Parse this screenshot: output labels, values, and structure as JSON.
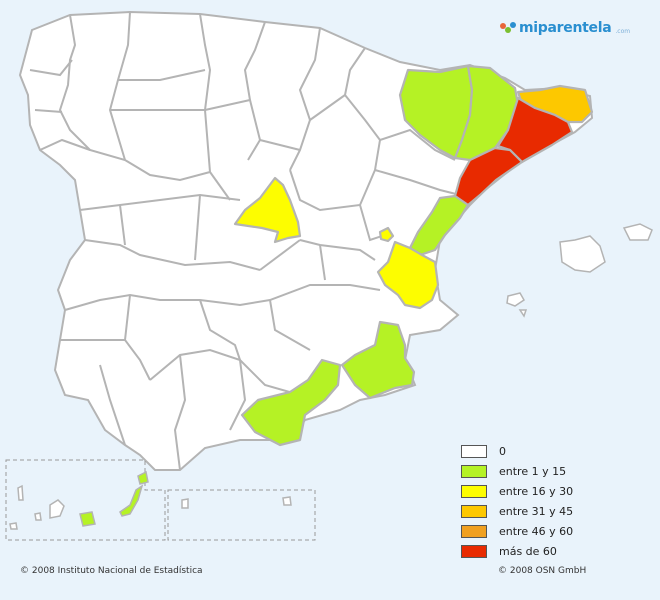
{
  "logo": {
    "text": "miparentela",
    "sub": ".com"
  },
  "legend": [
    {
      "label": "0",
      "color": "#ffffff"
    },
    {
      "label": "entre 1 y 15",
      "color": "#b5f225"
    },
    {
      "label": "entre 16 y 30",
      "color": "#fdfd00"
    },
    {
      "label": "entre 31 y 45",
      "color": "#fdc800"
    },
    {
      "label": "entre 46 y 60",
      "color": "#f0a020"
    },
    {
      "label": "más de 60",
      "color": "#e82a00"
    }
  ],
  "regions": [
    {
      "name": "Huesca",
      "category": "entre 1 y 15"
    },
    {
      "name": "Lleida",
      "category": "entre 1 y 15"
    },
    {
      "name": "Girona",
      "category": "entre 31 y 45"
    },
    {
      "name": "Barcelona",
      "category": "más de 60"
    },
    {
      "name": "Tarragona",
      "category": "más de 60"
    },
    {
      "name": "Castellón",
      "category": "entre 1 y 15"
    },
    {
      "name": "Valencia",
      "category": "entre 16 y 30"
    },
    {
      "name": "Madrid",
      "category": "entre 16 y 30"
    },
    {
      "name": "Murcia",
      "category": "entre 1 y 15"
    },
    {
      "name": "Almería",
      "category": "entre 1 y 15"
    },
    {
      "name": "Las Palmas",
      "category": "entre 1 y 15"
    }
  ],
  "footer": {
    "left": "© 2008 Instituto Nacional de Estadística",
    "right": "© 2008 OSN GmbH"
  }
}
